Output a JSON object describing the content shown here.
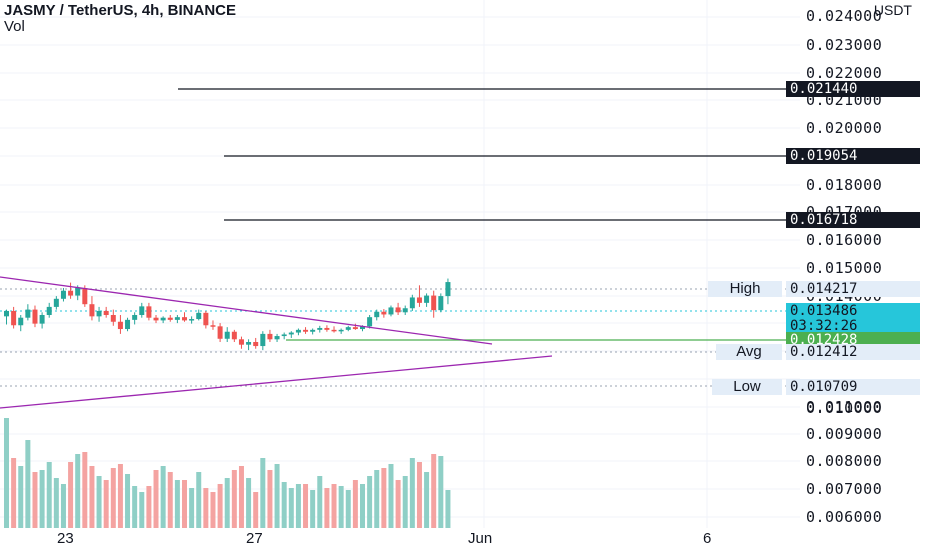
{
  "header": {
    "symbol_line": "JASMY / TetherUS, 4h, BINANCE",
    "volume_label": "Vol",
    "currency": "USDT"
  },
  "price_axis": {
    "ticks": [
      "0.024000",
      "0.023000",
      "0.022000",
      "0.021000",
      "0.020000",
      "0.018000",
      "0.017000",
      "0.016000",
      "0.015000",
      "0.014000",
      "0.011000",
      "0.010000",
      "0.009000",
      "0.008000",
      "0.007000",
      "0.006000"
    ]
  },
  "time_axis": {
    "labels": [
      "23",
      "27",
      "Jun",
      "6"
    ]
  },
  "levels": {
    "line_1": "0.021440",
    "line_2": "0.019054",
    "line_3": "0.016718"
  },
  "stats": {
    "high_label": "High",
    "high_value": "0.014217",
    "last_price": "0.013486",
    "countdown": "03:32:26",
    "ref_value": "0.012428",
    "avg_label": "Avg",
    "avg_value": "0.012412",
    "low_label": "Low",
    "low_value": "0.010709"
  },
  "colors": {
    "up": "#26a69a",
    "down": "#ef5350",
    "up_volume": "#8fcfc6",
    "down_volume": "#f4a3a1",
    "trendline": "#9c27b0",
    "green_level": "#4caf50",
    "last_price_tag": "#26c6da",
    "level_tag": "#131722"
  }
}
